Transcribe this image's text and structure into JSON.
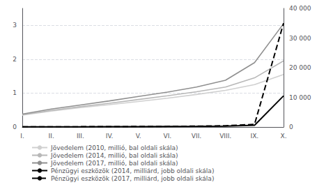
{
  "chart_data": {
    "type": "line",
    "categories": [
      "I.",
      "II.",
      "III.",
      "IV.",
      "V.",
      "VI.",
      "VII.",
      "VIII.",
      "IX.",
      "X."
    ],
    "series": [
      {
        "name": "Jövedelem (2010, millió, bal oldali skála)",
        "color": "#d0d0d0",
        "line_style": "solid",
        "values": [
          0.35,
          0.47,
          0.57,
          0.66,
          0.75,
          0.85,
          0.96,
          1.08,
          1.25,
          1.55
        ]
      },
      {
        "name": "Jövedelem (2014, millió, bal oldali skála)",
        "color": "#b8b8b8",
        "line_style": "solid",
        "values": [
          0.36,
          0.49,
          0.6,
          0.7,
          0.81,
          0.92,
          1.04,
          1.18,
          1.45,
          1.95
        ]
      },
      {
        "name": "Jövedelem (2017, millió, bal oldali skála)",
        "color": "#909090",
        "line_style": "solid",
        "values": [
          0.38,
          0.53,
          0.65,
          0.77,
          0.9,
          1.03,
          1.18,
          1.38,
          1.9,
          3.05
        ]
      },
      {
        "name": "Pénzügyi eszközök (2014, milliárd, jobb oldali skála)",
        "color": "#000000",
        "line_style": "solid",
        "axis": "y2",
        "values": [
          30,
          50,
          70,
          100,
          130,
          170,
          220,
          300,
          600,
          10500
        ]
      },
      {
        "name": "Pénzügyi eszközök (2017, milliárd, jobb oldali skála)",
        "color": "#000000",
        "line_style": "dashed",
        "axis": "y2",
        "values": [
          40,
          60,
          90,
          120,
          160,
          210,
          290,
          420,
          900,
          35000
        ]
      }
    ],
    "ylim": [
      0,
      3.5
    ],
    "yticks": [
      0,
      1,
      2,
      3
    ],
    "y2lim": [
      0,
      40000
    ],
    "y2ticks": [
      0,
      {
        "value": 10000,
        "label": "10 000"
      },
      {
        "value": 20000,
        "label": "20 000"
      },
      {
        "value": 30000,
        "label": "30 000"
      },
      {
        "value": 40000,
        "label": "40 000"
      }
    ],
    "grid": true,
    "legend": "bottom"
  }
}
